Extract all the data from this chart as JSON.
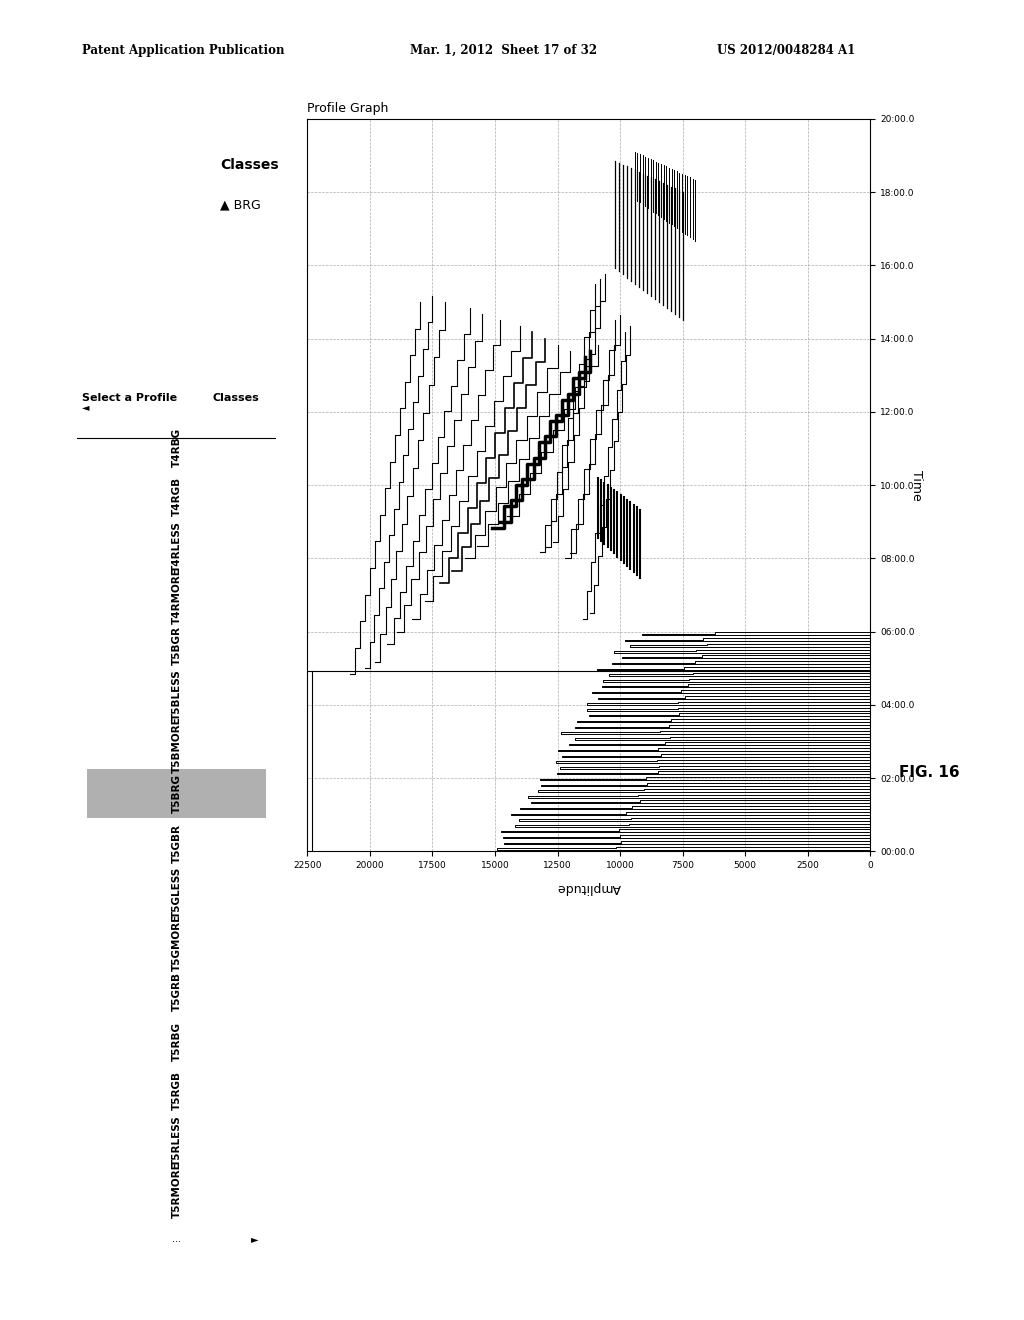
{
  "header_left": "Patent Application Publication",
  "header_mid": "Mar. 1, 2012  Sheet 17 of 32",
  "header_right": "US 2012/0048284 A1",
  "fig_label": "FIG. 16",
  "graph_title": "Profile Graph",
  "classes_label": "Classes",
  "selected_class": "BRG",
  "select_profile_label": "Select a Profile",
  "profiles": [
    "T4RBG",
    "T4RGB",
    "T4RLESS",
    "T4RMORE",
    "T5BGR",
    "T5BLESS",
    "T5BMORE",
    "T5BRG",
    "T5GBR",
    "T5GLESS",
    "T5GMORE",
    "T5GRB",
    "T5RBG",
    "T5RGB",
    "T5RLESS",
    "T5RMORE"
  ],
  "selected_profile_idx": 7,
  "x_label": "Time",
  "y_label": "Amplitude",
  "time_ticks": [
    "00:00.0",
    "02:00.0",
    "04:00.0",
    "06:00.0",
    "08:00.0",
    "10:00.0",
    "12:00.0",
    "14:00.0",
    "16:00.0",
    "18:00.0",
    "20:00.0"
  ],
  "amp_ticks": [
    0,
    2500,
    5000,
    7500,
    10000,
    12500,
    15000,
    17500,
    20000,
    22500
  ],
  "background_color": "#ffffff",
  "graph_bg": "#ffffff",
  "grid_color": "#999999",
  "line_color": "#000000"
}
